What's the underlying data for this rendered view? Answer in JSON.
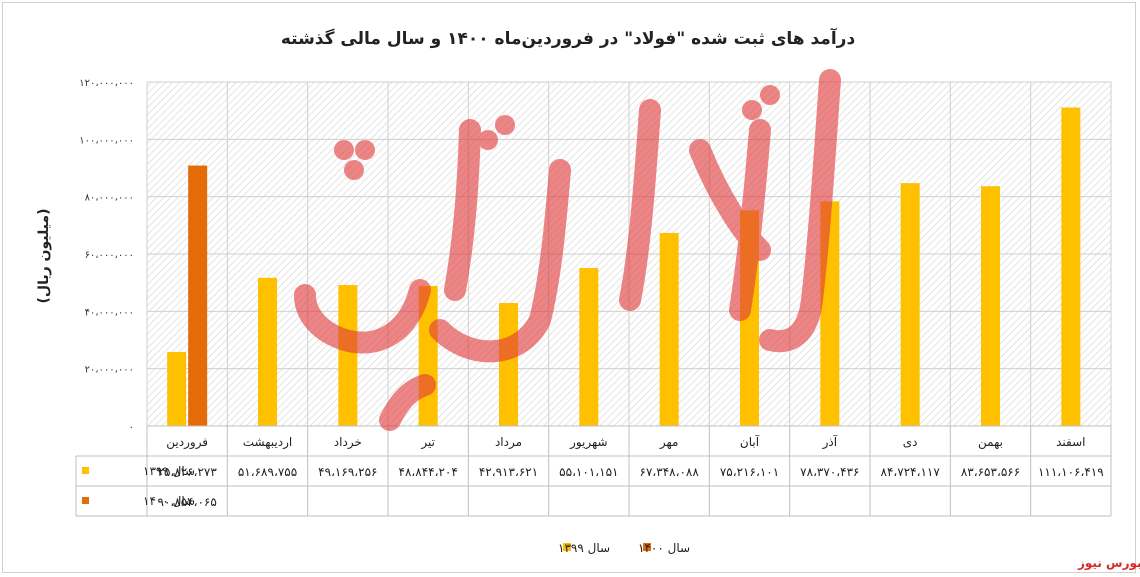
{
  "chart_data": {
    "type": "bar",
    "title": "درآمد های ثبت شده \"فولاد\" در فروردین‌ماه ۱۴۰۰ و سال مالی گذشته",
    "ylabel": "(میلیون ریال)",
    "xlabel": "",
    "ylim": [
      0,
      120000000
    ],
    "ytick_labels": [
      "۰",
      "۲۰،۰۰۰،۰۰۰",
      "۴۰،۰۰۰،۰۰۰",
      "۶۰،۰۰۰،۰۰۰",
      "۸۰،۰۰۰،۰۰۰",
      "۱۰۰،۰۰۰،۰۰۰",
      "۱۲۰،۰۰۰،۰۰۰"
    ],
    "categories": [
      "فروردین",
      "اردیبهشت",
      "خرداد",
      "تیر",
      "مرداد",
      "شهریور",
      "مهر",
      "آبان",
      "آذر",
      "دی",
      "بهمن",
      "اسفند"
    ],
    "grid": true,
    "legend_position": "bottom",
    "series": [
      {
        "name": "سال ۱۳۹۹",
        "color": "#ffc000",
        "values": [
          25826273,
          51689755,
          49169256,
          48844204,
          42913621,
          55101151,
          67348088,
          75216101,
          78370436,
          84724117,
          83653566,
          111106419
        ],
        "labels": [
          "۲۵،۸۲۶،۲۷۳",
          "۵۱،۶۸۹،۷۵۵",
          "۴۹،۱۶۹،۲۵۶",
          "۴۸،۸۴۴،۲۰۴",
          "۴۲،۹۱۳،۶۲۱",
          "۵۵،۱۰۱،۱۵۱",
          "۶۷،۳۴۸،۰۸۸",
          "۷۵،۲۱۶،۱۰۱",
          "۷۸،۳۷۰،۴۳۶",
          "۸۴،۷۲۴،۱۱۷",
          "۸۳،۶۵۳،۵۶۶",
          "۱۱۱،۱۰۶،۴۱۹"
        ]
      },
      {
        "name": "سال ۱۴۰۰",
        "color": "#e36c09",
        "values": [
          90854065,
          null,
          null,
          null,
          null,
          null,
          null,
          null,
          null,
          null,
          null,
          null
        ],
        "labels": [
          "۹۰،۸۵۴،۰۶۵",
          "",
          "",
          "",
          "",
          "",
          "",
          "",
          "",
          "",
          "",
          ""
        ]
      }
    ],
    "watermark": "بورس نیوز",
    "watermark_color": "#e23c3c"
  },
  "footer_brand": "بورس نیوز"
}
